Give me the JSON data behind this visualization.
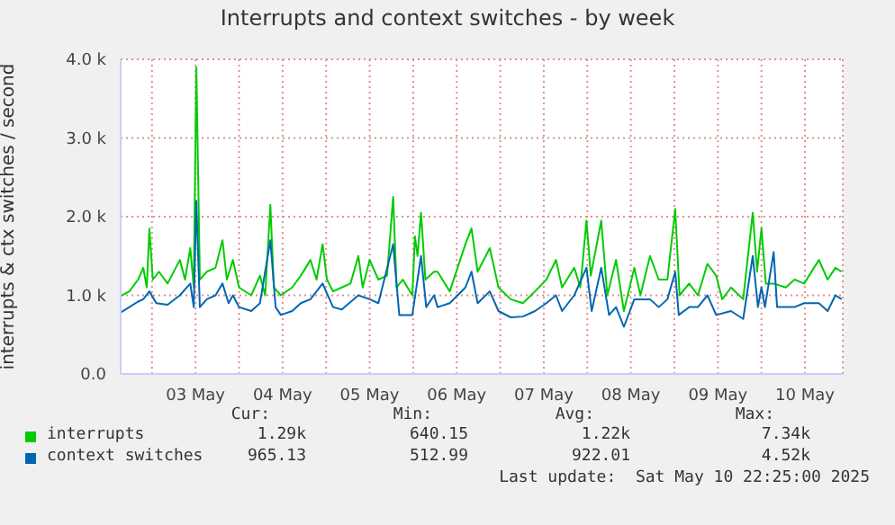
{
  "chart_data": {
    "type": "line",
    "title": "Interrupts and context switches - by week",
    "ylabel": "interrupts & ctx switches / second",
    "xlim": [
      "2025-05-02T15:22",
      "2025-05-10T22:25"
    ],
    "xticks": [
      {
        "value": "2025-05-03T00:00",
        "label": null
      },
      {
        "value": "2025-05-03T12:00",
        "label": "03 May"
      },
      {
        "value": "2025-05-04T00:00",
        "label": null
      },
      {
        "value": "2025-05-04T12:00",
        "label": "04 May"
      },
      {
        "value": "2025-05-05T00:00",
        "label": null
      },
      {
        "value": "2025-05-05T12:00",
        "label": "05 May"
      },
      {
        "value": "2025-05-06T00:00",
        "label": null
      },
      {
        "value": "2025-05-06T12:00",
        "label": "06 May"
      },
      {
        "value": "2025-05-07T00:00",
        "label": null
      },
      {
        "value": "2025-05-07T12:00",
        "label": "07 May"
      },
      {
        "value": "2025-05-08T00:00",
        "label": null
      },
      {
        "value": "2025-05-08T12:00",
        "label": "08 May"
      },
      {
        "value": "2025-05-09T00:00",
        "label": null
      },
      {
        "value": "2025-05-09T12:00",
        "label": "09 May"
      },
      {
        "value": "2025-05-10T00:00",
        "label": null
      },
      {
        "value": "2025-05-10T12:00",
        "label": "10 May"
      }
    ],
    "ylim": [
      0,
      4000
    ],
    "yticks": [
      {
        "value": 0,
        "label": "0.0"
      },
      {
        "value": 1000,
        "label": "1.0 k"
      },
      {
        "value": 2000,
        "label": "2.0 k"
      },
      {
        "value": 3000,
        "label": "3.0 k"
      },
      {
        "value": 4000,
        "label": "4.0 k"
      }
    ],
    "grid": true,
    "legend": "bottom",
    "marker": "none",
    "line_style": "solid",
    "series": [
      {
        "name": "interrupts",
        "color": "#00cc00",
        "x": [
          "2025-05-02T15:22",
          "2025-05-02T17:46",
          "2025-05-02T20:10",
          "2025-05-02T21:36",
          "2025-05-02T22:34",
          "2025-05-02T23:17",
          "2025-05-03T00:14",
          "2025-05-03T01:55",
          "2025-05-03T04:19",
          "2025-05-03T07:41",
          "2025-05-03T09:07",
          "2025-05-03T10:34",
          "2025-05-03T11:31",
          "2025-05-03T12:14",
          "2025-05-03T13:12",
          "2025-05-03T15:07",
          "2025-05-03T17:31",
          "2025-05-03T19:26",
          "2025-05-03T20:38",
          "2025-05-03T22:19",
          "2025-05-04T00:00",
          "2025-05-04T03:22",
          "2025-05-04T05:46",
          "2025-05-04T07:12",
          "2025-05-04T08:38",
          "2025-05-04T09:36",
          "2025-05-04T11:31",
          "2025-05-04T14:38",
          "2025-05-04T17:02",
          "2025-05-04T19:41",
          "2025-05-04T21:22",
          "2025-05-04T23:02",
          "2025-05-05T00:14",
          "2025-05-05T01:55",
          "2025-05-05T04:19",
          "2025-05-05T06:43",
          "2025-05-05T08:53",
          "2025-05-05T10:05",
          "2025-05-05T12:00",
          "2025-05-05T14:24",
          "2025-05-05T16:48",
          "2025-05-05T18:29",
          "2025-05-05T19:26",
          "2025-05-05T21:07",
          "2025-05-05T23:46",
          "2025-05-06T00:29",
          "2025-05-06T01:12",
          "2025-05-06T02:10",
          "2025-05-06T03:22",
          "2025-05-06T05:46",
          "2025-05-06T06:43",
          "2025-05-06T10:05",
          "2025-05-06T14:24",
          "2025-05-06T16:05",
          "2025-05-06T17:46",
          "2025-05-06T21:07",
          "2025-05-06T23:31",
          "2025-05-07T02:53",
          "2025-05-07T06:14",
          "2025-05-07T09:36",
          "2025-05-07T12:43",
          "2025-05-07T15:22",
          "2025-05-07T17:02",
          "2025-05-07T20:24",
          "2025-05-07T22:05",
          "2025-05-07T23:46",
          "2025-05-08T00:58",
          "2025-05-08T03:50",
          "2025-05-08T05:31",
          "2025-05-08T07:55",
          "2025-05-08T10:05",
          "2025-05-08T12:58",
          "2025-05-08T14:38",
          "2025-05-08T17:17",
          "2025-05-08T19:41",
          "2025-05-08T22:05",
          "2025-05-09T00:14",
          "2025-05-09T01:26",
          "2025-05-09T04:05",
          "2025-05-09T06:29",
          "2025-05-09T09:07",
          "2025-05-09T11:31",
          "2025-05-09T13:12",
          "2025-05-09T15:36",
          "2025-05-09T18:58",
          "2025-05-09T21:36",
          "2025-05-09T22:48",
          "2025-05-10T00:00",
          "2025-05-10T01:12",
          "2025-05-10T03:22",
          "2025-05-10T06:43",
          "2025-05-10T09:07",
          "2025-05-10T11:46",
          "2025-05-10T15:50",
          "2025-05-10T18:14",
          "2025-05-10T20:24",
          "2025-05-10T22:05"
        ],
        "values": [
          990,
          1050,
          1200,
          1350,
          1100,
          1850,
          1200,
          1300,
          1150,
          1450,
          1200,
          1600,
          1100,
          3900,
          1200,
          1300,
          1350,
          1700,
          1200,
          1450,
          1100,
          1000,
          1250,
          1000,
          2150,
          1100,
          1000,
          1100,
          1250,
          1450,
          1200,
          1650,
          1200,
          1050,
          1100,
          1150,
          1500,
          1100,
          1450,
          1200,
          1250,
          2250,
          1100,
          1200,
          1000,
          1750,
          1500,
          2050,
          1200,
          1300,
          1300,
          1050,
          1650,
          1850,
          1300,
          1600,
          1100,
          950,
          900,
          1050,
          1200,
          1450,
          1100,
          1350,
          1100,
          1950,
          1250,
          1950,
          1000,
          1450,
          800,
          1350,
          1000,
          1500,
          1200,
          1200,
          2100,
          1000,
          1150,
          1000,
          1400,
          1250,
          950,
          1100,
          950,
          2050,
          1300,
          1850,
          1150,
          1150,
          1100,
          1200,
          1150,
          1450,
          1200,
          1350,
          1300
        ]
      },
      {
        "name": "context switches",
        "color": "#0066b3",
        "x": [
          "2025-05-02T15:22",
          "2025-05-02T17:46",
          "2025-05-02T20:10",
          "2025-05-02T21:36",
          "2025-05-02T23:17",
          "2025-05-03T01:12",
          "2025-05-03T04:19",
          "2025-05-03T07:41",
          "2025-05-03T10:34",
          "2025-05-03T11:31",
          "2025-05-03T12:14",
          "2025-05-03T13:12",
          "2025-05-03T15:07",
          "2025-05-03T17:31",
          "2025-05-03T19:26",
          "2025-05-03T21:07",
          "2025-05-03T22:19",
          "2025-05-04T00:00",
          "2025-05-04T03:22",
          "2025-05-04T05:46",
          "2025-05-04T08:38",
          "2025-05-04T10:05",
          "2025-05-04T11:31",
          "2025-05-04T14:38",
          "2025-05-04T17:02",
          "2025-05-04T19:41",
          "2025-05-04T23:02",
          "2025-05-05T01:55",
          "2025-05-05T04:19",
          "2025-05-05T08:53",
          "2025-05-05T12:00",
          "2025-05-05T14:24",
          "2025-05-05T18:29",
          "2025-05-05T20:10",
          "2025-05-05T23:46",
          "2025-05-06T01:12",
          "2025-05-06T02:10",
          "2025-05-06T03:36",
          "2025-05-06T05:46",
          "2025-05-06T06:43",
          "2025-05-06T10:05",
          "2025-05-06T14:24",
          "2025-05-06T16:05",
          "2025-05-06T17:46",
          "2025-05-06T21:07",
          "2025-05-06T23:31",
          "2025-05-07T02:53",
          "2025-05-07T06:14",
          "2025-05-07T09:36",
          "2025-05-07T12:43",
          "2025-05-07T15:22",
          "2025-05-07T17:02",
          "2025-05-07T20:24",
          "2025-05-07T23:46",
          "2025-05-08T01:12",
          "2025-05-08T03:50",
          "2025-05-08T06:00",
          "2025-05-08T07:55",
          "2025-05-08T10:05",
          "2025-05-08T12:58",
          "2025-05-08T17:17",
          "2025-05-08T19:41",
          "2025-05-08T22:05",
          "2025-05-09T00:14",
          "2025-05-09T01:12",
          "2025-05-09T04:05",
          "2025-05-09T06:29",
          "2025-05-09T09:07",
          "2025-05-09T11:31",
          "2025-05-09T15:36",
          "2025-05-09T18:58",
          "2025-05-09T21:36",
          "2025-05-09T23:02",
          "2025-05-10T00:00",
          "2025-05-10T00:58",
          "2025-05-10T03:22",
          "2025-05-10T04:19",
          "2025-05-10T06:43",
          "2025-05-10T09:07",
          "2025-05-10T11:46",
          "2025-05-10T15:50",
          "2025-05-10T18:14",
          "2025-05-10T20:24",
          "2025-05-10T22:05"
        ],
        "values": [
          780,
          850,
          920,
          950,
          1050,
          900,
          880,
          1000,
          1150,
          850,
          2200,
          850,
          950,
          1000,
          1150,
          900,
          1000,
          850,
          800,
          900,
          1700,
          850,
          750,
          800,
          900,
          950,
          1150,
          850,
          820,
          1000,
          950,
          900,
          1650,
          750,
          750,
          1200,
          1500,
          850,
          1000,
          850,
          900,
          1100,
          1300,
          900,
          1050,
          800,
          720,
          730,
          800,
          900,
          1000,
          800,
          1000,
          1350,
          800,
          1350,
          750,
          850,
          600,
          950,
          950,
          850,
          950,
          1300,
          750,
          850,
          850,
          1000,
          750,
          800,
          700,
          1500,
          850,
          1100,
          850,
          1550,
          850,
          850,
          850,
          900,
          900,
          800,
          1000,
          950
        ]
      }
    ],
    "annotations": [
      "Cur:",
      "Min:",
      "Avg:",
      "Max:",
      "1.29k",
      "640.15",
      "1.22k",
      "7.34k",
      "965.13",
      "512.99",
      "922.01",
      "4.52k",
      "Last update:  Sat May 10 22:25:00 2025"
    ]
  }
}
